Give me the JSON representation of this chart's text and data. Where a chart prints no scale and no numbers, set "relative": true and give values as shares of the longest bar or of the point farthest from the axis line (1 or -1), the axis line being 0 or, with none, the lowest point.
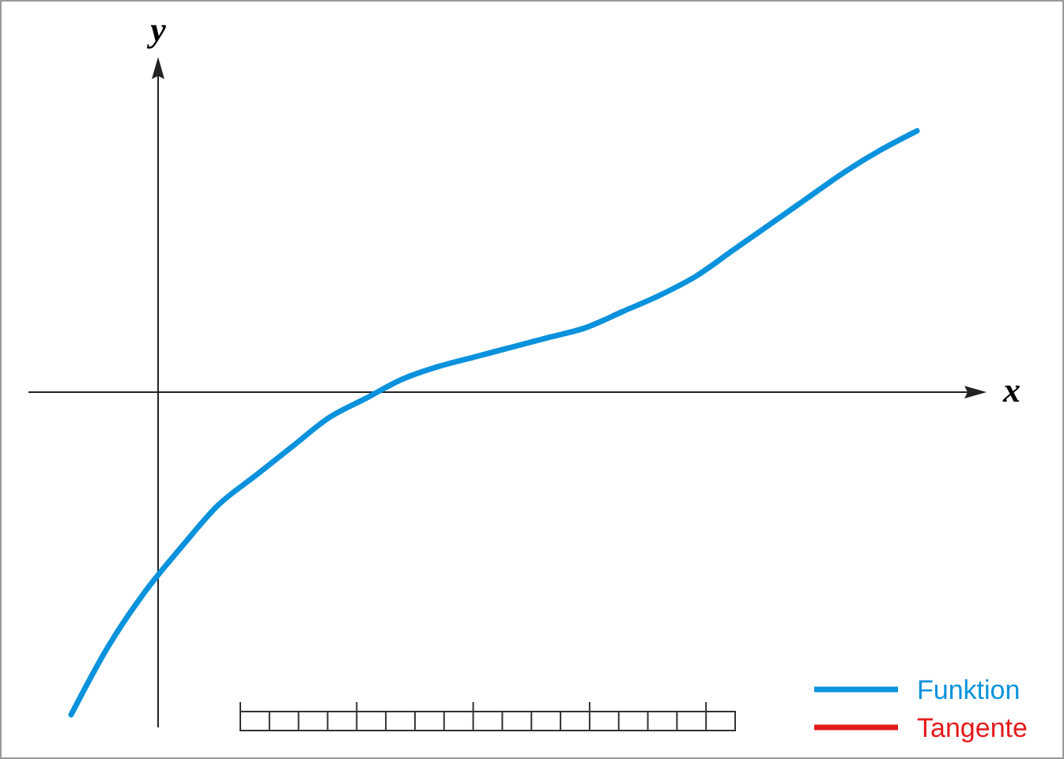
{
  "chart_data": {
    "type": "line",
    "xlabel": "x",
    "ylabel": "y",
    "relative": true,
    "legend": "bottom right",
    "marker": "none",
    "line_style": "solid",
    "categories": [
      null,
      null,
      null,
      null,
      null,
      null,
      null,
      null,
      null,
      null,
      null,
      null,
      null,
      null,
      null,
      null,
      null,
      null,
      null,
      null,
      null,
      null,
      null,
      null
    ],
    "series": [
      {
        "name": "Funktion",
        "color": "#0a92dc",
        "values": [
          -1,
          -0.79,
          -0.62,
          -0.48,
          -0.35,
          -0.26,
          -0.17,
          -0.08,
          -0.02,
          0.04,
          0.08,
          0.11,
          0.14,
          0.17,
          0.2,
          0.25,
          0.3,
          0.36,
          0.44,
          0.52,
          0.6,
          0.68,
          0.75,
          0.81
        ]
      },
      {
        "name": "Tangente",
        "color": "#e31b1b",
        "values": [
          null,
          null,
          null,
          null,
          null,
          null,
          null,
          null,
          null,
          null,
          null,
          null,
          null,
          null,
          null,
          null,
          null,
          null,
          null,
          null,
          null,
          null,
          null,
          null
        ]
      }
    ]
  }
}
